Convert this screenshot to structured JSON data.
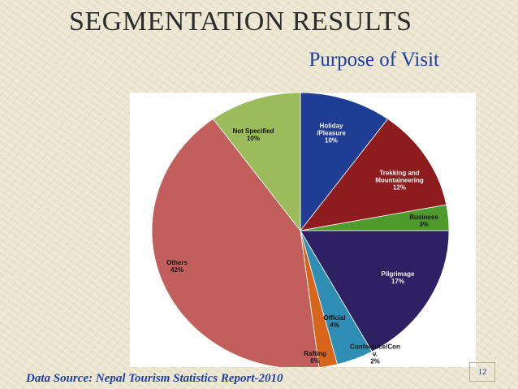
{
  "chart_data": {
    "type": "pie",
    "title": "SEGMENTATION RESULTS",
    "subtitle": "Purpose of Visit",
    "categories": [
      "Holiday\n/Pleasure",
      "Trekking and\nMountaineering",
      "Business",
      "Pilgrimage",
      "Official",
      "Conference/Con\nv.",
      "Rafting",
      "Others",
      "Not Specified"
    ],
    "values": [
      10,
      12,
      3,
      17,
      4,
      2,
      0,
      42,
      10
    ],
    "value_labels": [
      "10%",
      "12%",
      "3%",
      "17%",
      "4%",
      "2%",
      "0%",
      "42%",
      "10%"
    ],
    "colors": [
      "#1f3d92",
      "#8e1b1e",
      "#4f9a2c",
      "#2e2163",
      "#2f8eb3",
      "#d8651c",
      "#c8b8a8",
      "#c25e5c",
      "#9cbc5b"
    ],
    "source": "Data Source: Nepal Tourism Statistics Report-2010",
    "page_number": "12"
  }
}
